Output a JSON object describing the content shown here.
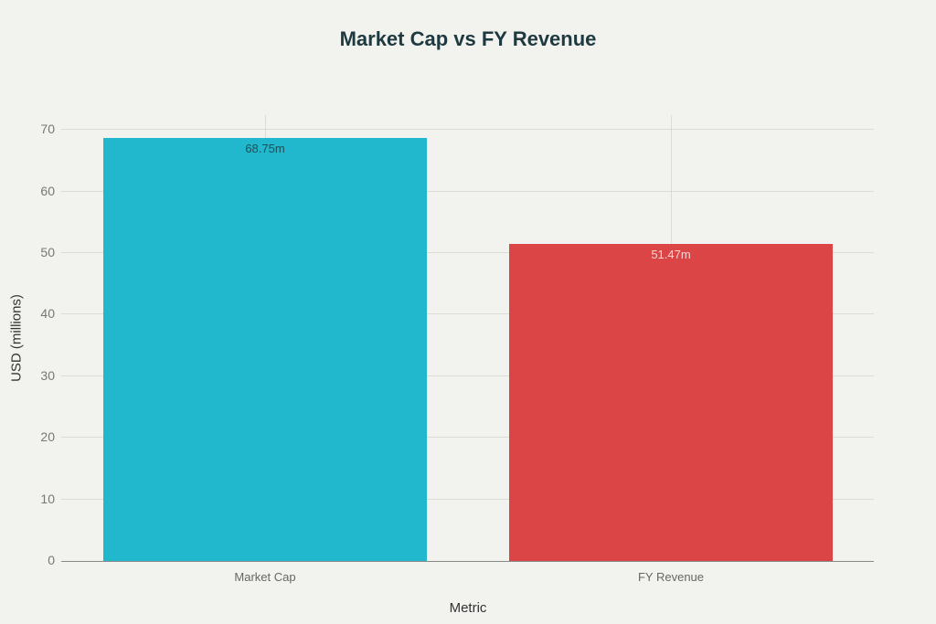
{
  "chart_data": {
    "type": "bar",
    "title": "Market Cap vs FY Revenue",
    "xlabel": "Metric",
    "ylabel": "USD (millions)",
    "categories": [
      "Market Cap",
      "FY Revenue"
    ],
    "values": [
      68.75,
      51.47
    ],
    "data_labels": [
      "68.75m",
      "51.47m"
    ],
    "colors": [
      "#21b8cd",
      "#db4545"
    ],
    "label_colors": [
      "#1e4e58",
      "#f6d3d3"
    ],
    "ylim": [
      0,
      72.4
    ],
    "yticks": [
      0,
      10,
      20,
      30,
      40,
      50,
      60,
      70
    ],
    "grid": true,
    "legend": "none"
  }
}
